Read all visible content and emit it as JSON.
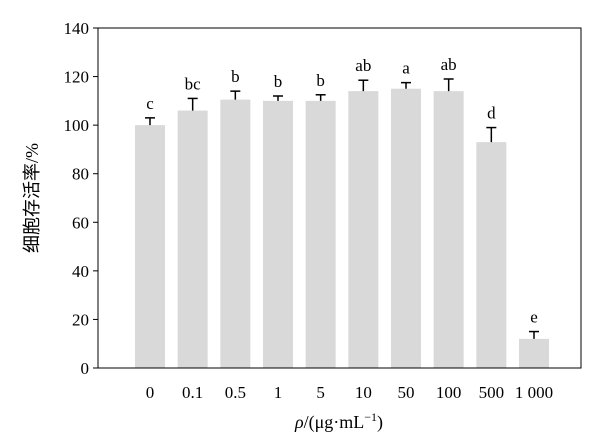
{
  "chart_data": {
    "type": "bar",
    "categories": [
      "0",
      "0.1",
      "0.5",
      "1",
      "5",
      "10",
      "50",
      "100",
      "500",
      "1 000"
    ],
    "values": [
      100,
      106,
      110.5,
      110,
      110,
      114,
      115,
      114,
      93,
      12
    ],
    "errors": [
      3,
      5,
      3.5,
      2,
      2.5,
      4.5,
      2.5,
      5,
      6,
      3
    ],
    "significance_letters": [
      "c",
      "bc",
      "b",
      "b",
      "b",
      "ab",
      "a",
      "ab",
      "d",
      "e"
    ],
    "yticks": [
      0,
      20,
      40,
      60,
      80,
      100,
      120,
      140
    ],
    "ylim": [
      0,
      140
    ],
    "xlabel_parts": {
      "symbol": "ρ",
      "rest": "/(μg·mL",
      "sup": "−1",
      "close": ")"
    },
    "ylabel": "细胞存活率/%",
    "bar_color": "#d9d9d9",
    "grid": false
  }
}
